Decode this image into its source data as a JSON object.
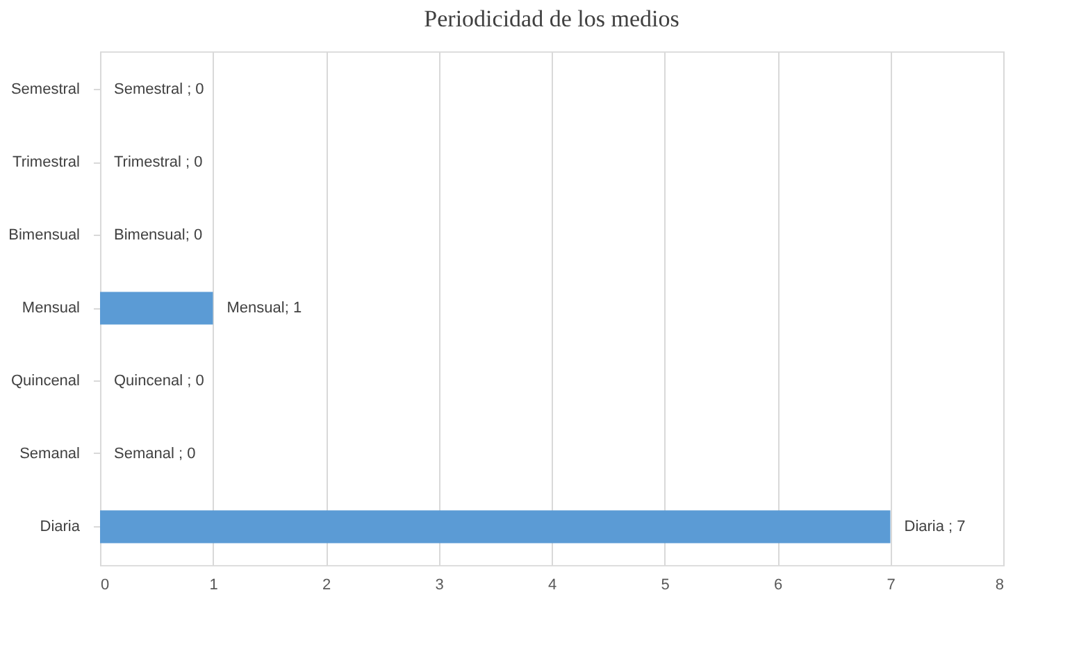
{
  "chart_data": {
    "type": "bar",
    "orientation": "horizontal",
    "title": "Periodicidad de los medios",
    "categories": [
      "Semestral",
      "Trimestral",
      "Bimensual",
      "Mensual",
      "Quincenal",
      "Semanal",
      "Diaria"
    ],
    "values": [
      0,
      0,
      0,
      1,
      0,
      0,
      7
    ],
    "value_labels": [
      "Semestral ; 0",
      "Trimestral ; 0",
      "Bimensual; 0",
      "Mensual; 1",
      "Quincenal ; 0",
      "Semanal ; 0",
      "Diaria ; 7"
    ],
    "color": "#5b9bd5",
    "xlim": [
      0,
      8
    ],
    "xticks": [
      0,
      1,
      2,
      3,
      4,
      5,
      6,
      7,
      8
    ],
    "grid": "x"
  }
}
